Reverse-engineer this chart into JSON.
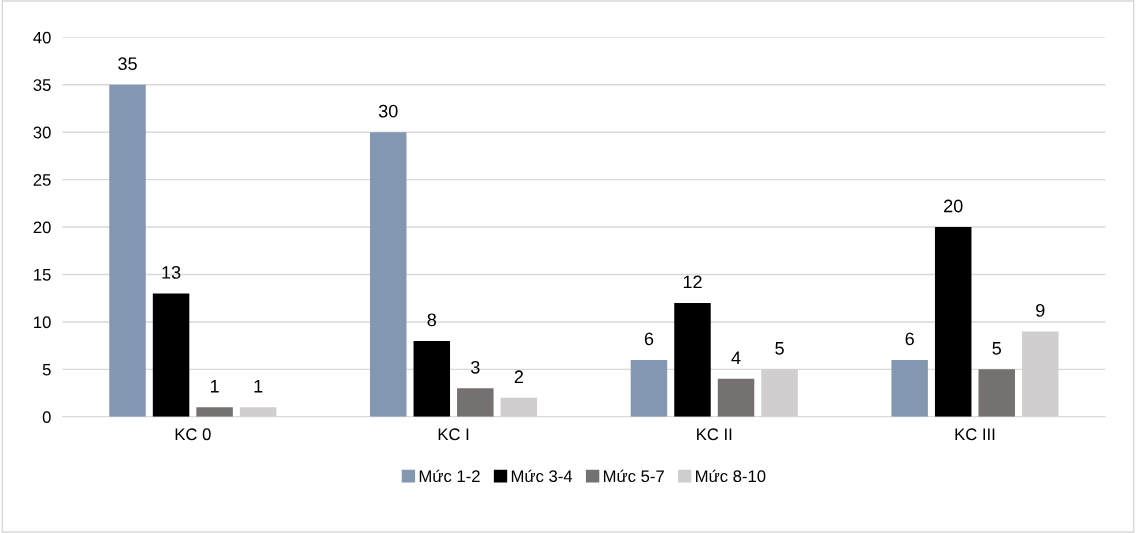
{
  "chart_data": {
    "type": "bar",
    "categories": [
      "KC 0",
      "KC I",
      "KC II",
      "KC III"
    ],
    "series": [
      {
        "name": "Mức 1-2",
        "color": "#8497b0",
        "values": [
          35,
          30,
          6,
          6
        ]
      },
      {
        "name": "Mức 3-4",
        "color": "#000000",
        "values": [
          13,
          8,
          12,
          20
        ]
      },
      {
        "name": "Mức 5-7",
        "color": "#767171",
        "values": [
          1,
          3,
          4,
          5
        ]
      },
      {
        "name": "Mức 8-10",
        "color": "#d0cece",
        "values": [
          1,
          2,
          5,
          9
        ]
      }
    ],
    "ylim": [
      0,
      40
    ],
    "yticks": [
      0,
      5,
      10,
      15,
      20,
      25,
      30,
      35,
      40
    ],
    "grid": "y",
    "legend": "bottom",
    "data_labels": true
  }
}
